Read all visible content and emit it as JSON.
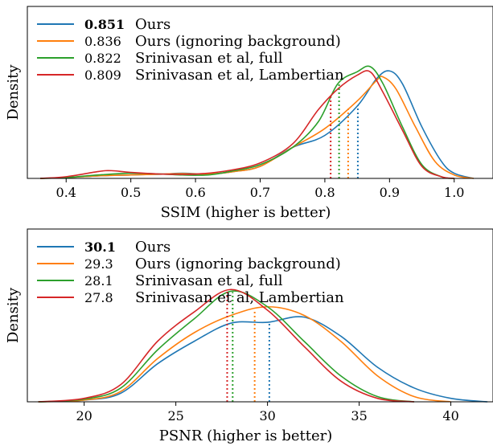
{
  "chart_data": [
    {
      "type": "line",
      "subtype": "kde-density",
      "xlabel": "SSIM (higher is better)",
      "ylabel": "Density",
      "xlim": [
        0.34,
        1.06
      ],
      "ylim": [
        0,
        1.0
      ],
      "xticks": [
        "0.4",
        "0.5",
        "0.6",
        "0.7",
        "0.8",
        "0.9",
        "1.0"
      ],
      "xtick_values": [
        0.4,
        0.5,
        0.6,
        0.7,
        0.8,
        0.9,
        1.0
      ],
      "legend_position": "top-left",
      "series": [
        {
          "name": "Ours",
          "value": "0.851",
          "mean": 0.851,
          "color": "#1f77b4",
          "bold": true,
          "points": [
            [
              0.36,
              0
            ],
            [
              0.4,
              0.005
            ],
            [
              0.45,
              0.015
            ],
            [
              0.5,
              0.02
            ],
            [
              0.55,
              0.025
            ],
            [
              0.58,
              0.03
            ],
            [
              0.62,
              0.025
            ],
            [
              0.66,
              0.04
            ],
            [
              0.7,
              0.07
            ],
            [
              0.75,
              0.18
            ],
            [
              0.8,
              0.25
            ],
            [
              0.85,
              0.42
            ],
            [
              0.88,
              0.58
            ],
            [
              0.9,
              0.625
            ],
            [
              0.92,
              0.55
            ],
            [
              0.95,
              0.3
            ],
            [
              0.98,
              0.1
            ],
            [
              1.0,
              0.03
            ],
            [
              1.03,
              0
            ]
          ]
        },
        {
          "name": "Ours (ignoring background)",
          "value": "0.836",
          "mean": 0.836,
          "color": "#ff7f0e",
          "bold": false,
          "points": [
            [
              0.36,
              0
            ],
            [
              0.4,
              0.005
            ],
            [
              0.45,
              0.015
            ],
            [
              0.5,
              0.02
            ],
            [
              0.55,
              0.025
            ],
            [
              0.58,
              0.028
            ],
            [
              0.62,
              0.025
            ],
            [
              0.66,
              0.04
            ],
            [
              0.7,
              0.07
            ],
            [
              0.75,
              0.18
            ],
            [
              0.8,
              0.29
            ],
            [
              0.85,
              0.45
            ],
            [
              0.88,
              0.57
            ],
            [
              0.89,
              0.59
            ],
            [
              0.91,
              0.52
            ],
            [
              0.94,
              0.3
            ],
            [
              0.97,
              0.1
            ],
            [
              1.0,
              0.02
            ],
            [
              1.03,
              0
            ]
          ]
        },
        {
          "name": "Srinivasan et al, full",
          "value": "0.822",
          "mean": 0.822,
          "color": "#2ca02c",
          "bold": false,
          "points": [
            [
              0.36,
              0
            ],
            [
              0.4,
              0.005
            ],
            [
              0.45,
              0.02
            ],
            [
              0.5,
              0.03
            ],
            [
              0.55,
              0.025
            ],
            [
              0.58,
              0.02
            ],
            [
              0.62,
              0.02
            ],
            [
              0.66,
              0.045
            ],
            [
              0.7,
              0.08
            ],
            [
              0.75,
              0.18
            ],
            [
              0.79,
              0.33
            ],
            [
              0.82,
              0.55
            ],
            [
              0.85,
              0.62
            ],
            [
              0.87,
              0.65
            ],
            [
              0.89,
              0.55
            ],
            [
              0.92,
              0.3
            ],
            [
              0.95,
              0.08
            ],
            [
              0.98,
              0.01
            ],
            [
              1.0,
              0
            ]
          ]
        },
        {
          "name": "Srinivasan et al, Lambertian",
          "value": "0.809",
          "mean": 0.809,
          "color": "#d62728",
          "bold": false,
          "points": [
            [
              0.36,
              0
            ],
            [
              0.4,
              0.01
            ],
            [
              0.45,
              0.04
            ],
            [
              0.47,
              0.045
            ],
            [
              0.5,
              0.035
            ],
            [
              0.55,
              0.025
            ],
            [
              0.6,
              0.025
            ],
            [
              0.65,
              0.045
            ],
            [
              0.7,
              0.09
            ],
            [
              0.75,
              0.2
            ],
            [
              0.79,
              0.4
            ],
            [
              0.82,
              0.52
            ],
            [
              0.85,
              0.6
            ],
            [
              0.87,
              0.62
            ],
            [
              0.89,
              0.5
            ],
            [
              0.92,
              0.28
            ],
            [
              0.95,
              0.07
            ],
            [
              0.98,
              0.01
            ],
            [
              1.0,
              0
            ]
          ]
        }
      ]
    },
    {
      "type": "line",
      "subtype": "kde-density",
      "xlabel": "PSNR (higher is better)",
      "ylabel": "Density",
      "xlim": [
        16.9,
        42.3
      ],
      "ylim": [
        0,
        1.0
      ],
      "xticks": [
        "20",
        "25",
        "30",
        "35",
        "40"
      ],
      "xtick_values": [
        20,
        25,
        30,
        35,
        40
      ],
      "legend_position": "top-left",
      "series": [
        {
          "name": "Ours",
          "value": "30.1",
          "mean": 30.1,
          "color": "#1f77b4",
          "bold": true,
          "points": [
            [
              17.5,
              0
            ],
            [
              20,
              0.01
            ],
            [
              22,
              0.05
            ],
            [
              24,
              0.22
            ],
            [
              26,
              0.35
            ],
            [
              28,
              0.455
            ],
            [
              30,
              0.46
            ],
            [
              32,
              0.49
            ],
            [
              34,
              0.38
            ],
            [
              36,
              0.2
            ],
            [
              38,
              0.08
            ],
            [
              40,
              0.02
            ],
            [
              42,
              0
            ]
          ]
        },
        {
          "name": "Ours (ignoring background)",
          "value": "29.3",
          "mean": 29.3,
          "color": "#ff7f0e",
          "bold": false,
          "points": [
            [
              17.5,
              0
            ],
            [
              20,
              0.01
            ],
            [
              22,
              0.06
            ],
            [
              24,
              0.25
            ],
            [
              26,
              0.4
            ],
            [
              28,
              0.5
            ],
            [
              30,
              0.55
            ],
            [
              32,
              0.5
            ],
            [
              34,
              0.35
            ],
            [
              36,
              0.15
            ],
            [
              38,
              0.03
            ],
            [
              40,
              0
            ]
          ]
        },
        {
          "name": "Srinivasan et al, full",
          "value": "28.1",
          "mean": 28.1,
          "color": "#2ca02c",
          "bold": false,
          "points": [
            [
              17.5,
              0
            ],
            [
              20,
              0.015
            ],
            [
              22,
              0.08
            ],
            [
              24,
              0.3
            ],
            [
              26,
              0.48
            ],
            [
              28,
              0.64
            ],
            [
              30,
              0.55
            ],
            [
              32,
              0.35
            ],
            [
              34,
              0.15
            ],
            [
              36,
              0.03
            ],
            [
              38,
              0
            ]
          ]
        },
        {
          "name": "Srinivasan et al, Lambertian",
          "value": "27.8",
          "mean": 27.8,
          "color": "#d62728",
          "bold": false,
          "points": [
            [
              17.5,
              0
            ],
            [
              20,
              0.02
            ],
            [
              22,
              0.1
            ],
            [
              24,
              0.35
            ],
            [
              26,
              0.52
            ],
            [
              28,
              0.65
            ],
            [
              30,
              0.53
            ],
            [
              32,
              0.32
            ],
            [
              34,
              0.12
            ],
            [
              36,
              0.02
            ],
            [
              38,
              0
            ]
          ]
        }
      ]
    }
  ]
}
